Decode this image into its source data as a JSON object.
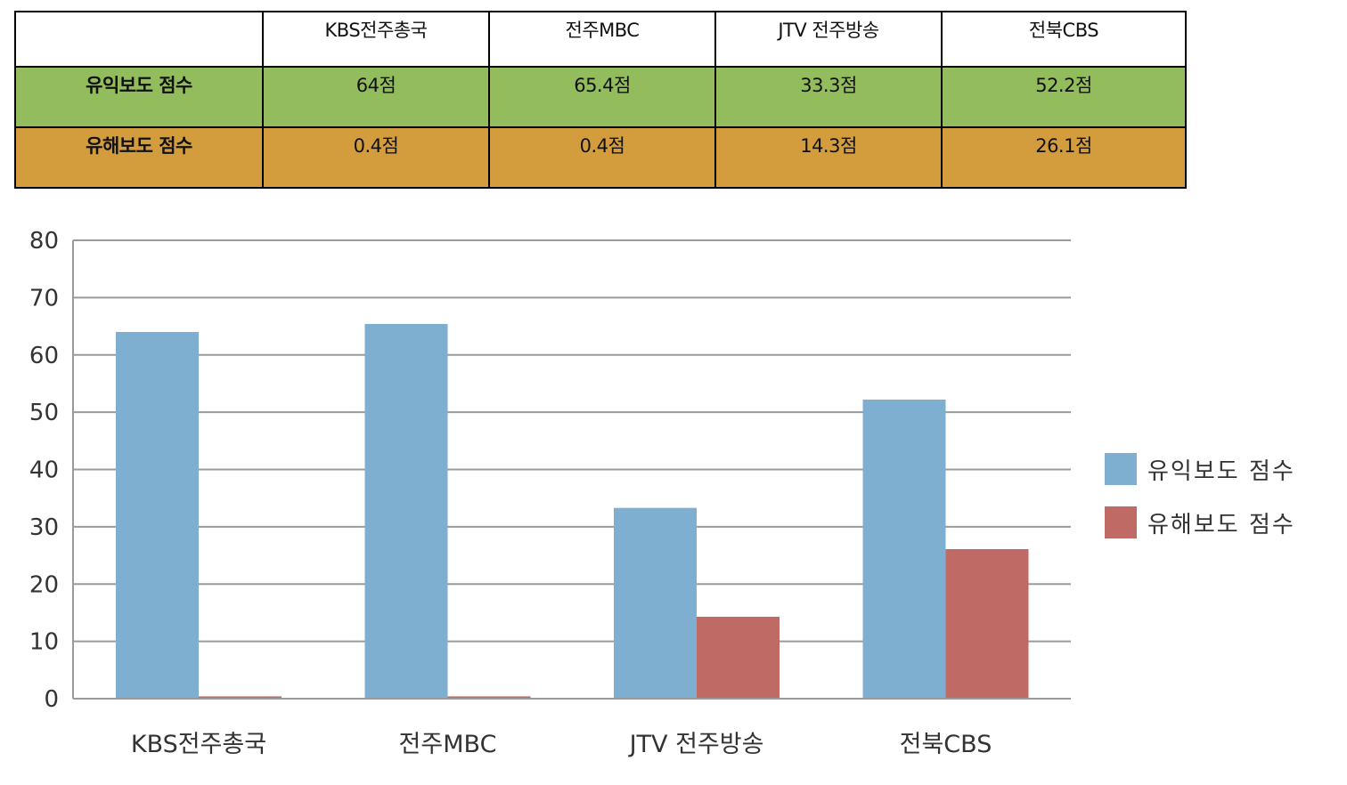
{
  "table": {
    "columns": [
      "",
      "KBS전주총국",
      "전주MBC",
      "JTV 전주방송",
      "전북CBS"
    ],
    "rows": [
      {
        "label": "유익보도 점수",
        "cells": [
          "64점",
          "65.4점",
          "33.3점",
          "52.2점"
        ],
        "color": "#93bd5c"
      },
      {
        "label": "유해보도 점수",
        "cells": [
          "0.4점",
          "0.4점",
          "14.3점",
          "26.1점"
        ],
        "color": "#d39c3d"
      }
    ]
  },
  "chart_data": {
    "type": "bar",
    "categories": [
      "KBS전주총국",
      "전주MBC",
      "JTV 전주방송",
      "전북CBS"
    ],
    "series": [
      {
        "name": "유익보도 점수",
        "values": [
          64,
          65.4,
          33.3,
          52.2
        ],
        "color": "#7fafd0"
      },
      {
        "name": "유해보도 점수",
        "values": [
          0.4,
          0.4,
          14.3,
          26.1
        ],
        "color": "#c06a66"
      }
    ],
    "ylim": [
      0,
      80
    ],
    "yticks": [
      0,
      10,
      20,
      30,
      40,
      50,
      60,
      70,
      80
    ],
    "grid": true,
    "legend_position": "right"
  }
}
